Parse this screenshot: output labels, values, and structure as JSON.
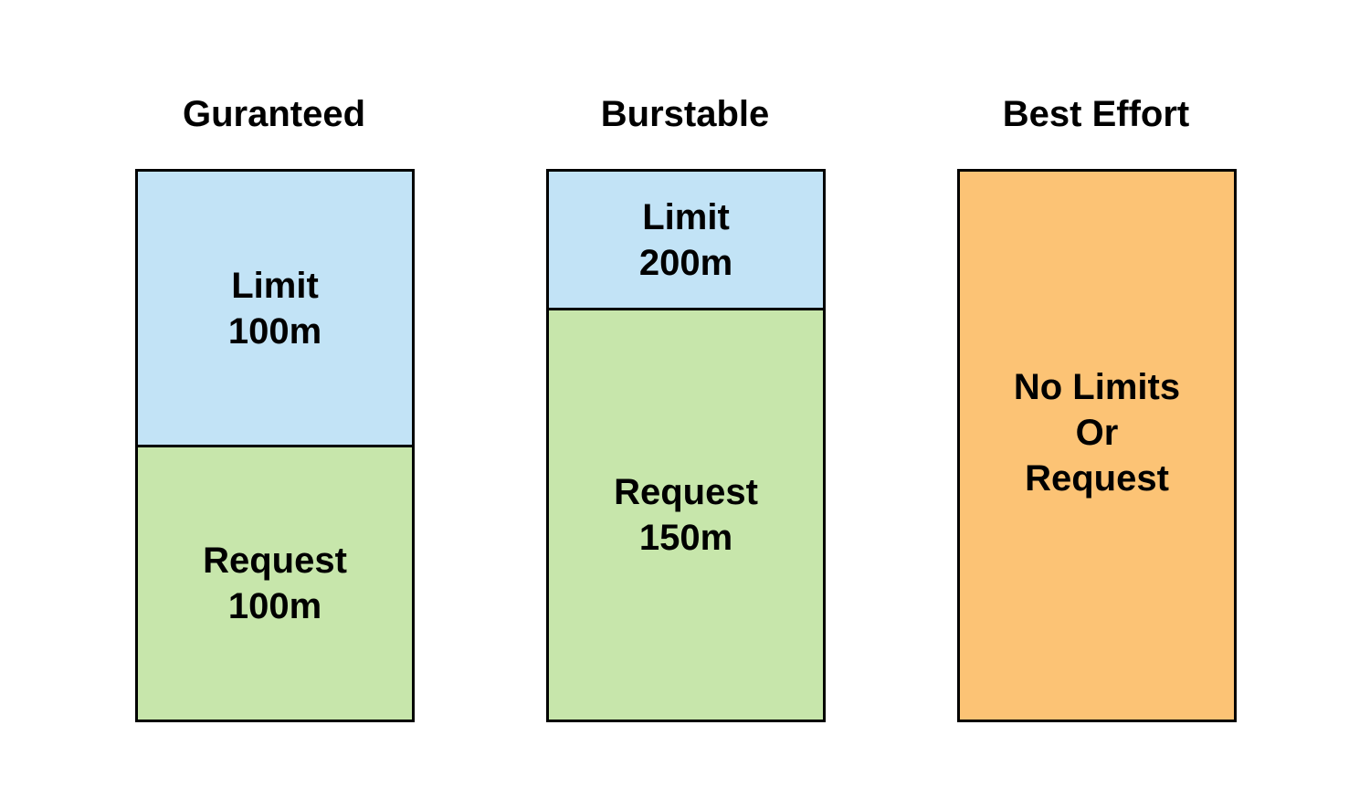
{
  "columns": [
    {
      "title": "Guranteed",
      "limit_label": "Limit",
      "limit_value": "100m",
      "request_label": "Request",
      "request_value": "100m"
    },
    {
      "title": "Burstable",
      "limit_label": "Limit",
      "limit_value": "200m",
      "request_label": "Request",
      "request_value": "150m"
    },
    {
      "title": "Best Effort",
      "lines": [
        "No Limits",
        "Or",
        "Request"
      ]
    }
  ],
  "colors": {
    "limit": "#c2e3f6",
    "request": "#c7e6ab",
    "best_effort": "#fcc375"
  }
}
